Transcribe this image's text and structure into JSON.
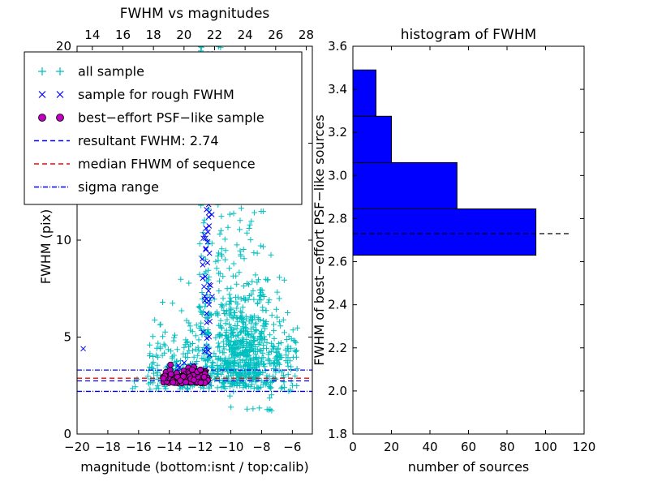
{
  "figure": {
    "background": "#ffffff",
    "accent_blue": "#0000ff",
    "accent_cyan": "#00bfbf",
    "accent_magenta": "#bf00bf",
    "accent_red": "#ff0000"
  },
  "chart_data": [
    {
      "type": "scatter",
      "title": "FWHM vs magnitudes",
      "xlabel": "magnitude (bottom:isnt / top:calib)",
      "ylabel": "FWHM (pix)",
      "xlim": [
        -20,
        -4.7
      ],
      "ylim": [
        0,
        20
      ],
      "x_ticks": [
        -20,
        -18,
        -16,
        -14,
        -12,
        -10,
        -8,
        -6
      ],
      "y_ticks": [
        0,
        5,
        10,
        15,
        20
      ],
      "top_axis": {
        "lim": [
          13,
          28.4
        ],
        "ticks": [
          14,
          16,
          18,
          20,
          22,
          24,
          26,
          28
        ]
      },
      "grid": false,
      "series": [
        {
          "name": "all sample",
          "marker": "plus",
          "color": "#00bfbf",
          "clusters": [
            {
              "kind": "gauss",
              "cx": -9.2,
              "sx": 1.35,
              "y0": 2.35,
              "ys": 2.3,
              "n": 600
            },
            {
              "kind": "gauss",
              "cx": -9.4,
              "sx": 1.15,
              "y0": 3.0,
              "ys": 4.6,
              "n": 150
            },
            {
              "kind": "unig",
              "x0": -15.3,
              "x1": -12.1,
              "y0": 2.3,
              "ys": 1.7,
              "n": 140
            },
            {
              "kind": "col",
              "cx": -11.85,
              "sx": 0.12,
              "ymin": 2.4,
              "ymax": 20,
              "n": 55
            },
            {
              "kind": "col",
              "cx": -11.5,
              "sx": 0.1,
              "ymin": 2.5,
              "ymax": 19.5,
              "n": 45
            },
            {
              "kind": "col",
              "cx": -10.7,
              "sx": 0.13,
              "ymin": 3.0,
              "ymax": 20,
              "n": 35
            },
            {
              "kind": "uni",
              "x0": -7.4,
              "x1": -5.7,
              "y0": 2.2,
              "y1": 5.0,
              "n": 40
            },
            {
              "kind": "uni",
              "x0": -10.2,
              "x1": -7.0,
              "y0": 0.9,
              "y1": 2.2,
              "n": 12
            },
            {
              "kind": "uni",
              "x0": -16.6,
              "x1": -15.1,
              "y0": 2.3,
              "y1": 3.3,
              "n": 8
            }
          ],
          "points": []
        },
        {
          "name": "sample for rough FWHM",
          "marker": "cross",
          "color": "#0000ff",
          "clusters": [
            {
              "kind": "col",
              "cx": -11.55,
              "sx": 0.15,
              "ymin": 2.6,
              "ymax": 13.5,
              "n": 48
            },
            {
              "kind": "col",
              "cx": -11.5,
              "sx": 0.12,
              "ymin": 13.5,
              "ymax": 20,
              "n": 10
            },
            {
              "kind": "uni",
              "x0": -14.3,
              "x1": -12.0,
              "y0": 2.7,
              "y1": 3.7,
              "n": 12
            }
          ],
          "points": [
            [
              -19.6,
              4.4
            ]
          ]
        },
        {
          "name": "best-effort PSF-like sample",
          "marker": "circle",
          "color": "#bf00bf",
          "edge": "#000000",
          "clusters": [
            {
              "kind": "unig",
              "x0": -14.5,
              "x1": -11.5,
              "y0": 2.62,
              "ys": 0.38,
              "n": 135
            }
          ],
          "points": []
        }
      ],
      "hlines": [
        {
          "label": "resultant FWHM: 2.74",
          "y": 2.74,
          "color": "#0000ff",
          "dash": "6,4"
        },
        {
          "label": "median FHWM of sequence",
          "y": 2.88,
          "color": "#ff0000",
          "dash": "6,4"
        },
        {
          "label": "sigma range",
          "y": 2.2,
          "color": "#0000ff",
          "dash": "6,2,1,2"
        },
        {
          "label": "sigma range",
          "y": 3.3,
          "color": "#0000ff",
          "dash": "6,2,1,2"
        }
      ],
      "legend": {
        "entries": [
          {
            "label": "all sample",
            "type": "marker",
            "marker": "plus",
            "color": "#00bfbf"
          },
          {
            "label": "sample for rough FWHM",
            "type": "marker",
            "marker": "cross",
            "color": "#0000ff"
          },
          {
            "label": "best-effort PSF-like sample",
            "type": "marker",
            "marker": "circle",
            "color": "#bf00bf",
            "edge": "#000000"
          },
          {
            "label": "resultant FWHM: 2.74",
            "type": "line",
            "color": "#0000ff",
            "dash": "6,4"
          },
          {
            "label": "median FHWM of sequence",
            "type": "line",
            "color": "#ff0000",
            "dash": "6,4"
          },
          {
            "label": "sigma range",
            "type": "line",
            "color": "#0000ff",
            "dash": "6,2,1,2"
          }
        ]
      }
    },
    {
      "type": "barh",
      "title": "histogram of FWHM",
      "xlabel": "number of sources",
      "ylabel": "FWHM of best-effort PSF-like sources",
      "xlim": [
        0,
        120
      ],
      "ylim": [
        1.8,
        3.6
      ],
      "x_ticks": [
        0,
        20,
        40,
        60,
        80,
        100,
        120
      ],
      "y_ticks": [
        1.8,
        2.0,
        2.2,
        2.4,
        2.6,
        2.8,
        3.0,
        3.2,
        3.4,
        3.6
      ],
      "bar_color": "#0000ff",
      "bar_edge": "#000000",
      "bin_edges": [
        2.63,
        2.845,
        3.06,
        3.275,
        3.49
      ],
      "counts": [
        95,
        54,
        20,
        12
      ],
      "dashed_line": {
        "y": 2.73,
        "x_start": 0,
        "x_end": 112,
        "color": "#000000",
        "dash": "6,4"
      }
    }
  ]
}
